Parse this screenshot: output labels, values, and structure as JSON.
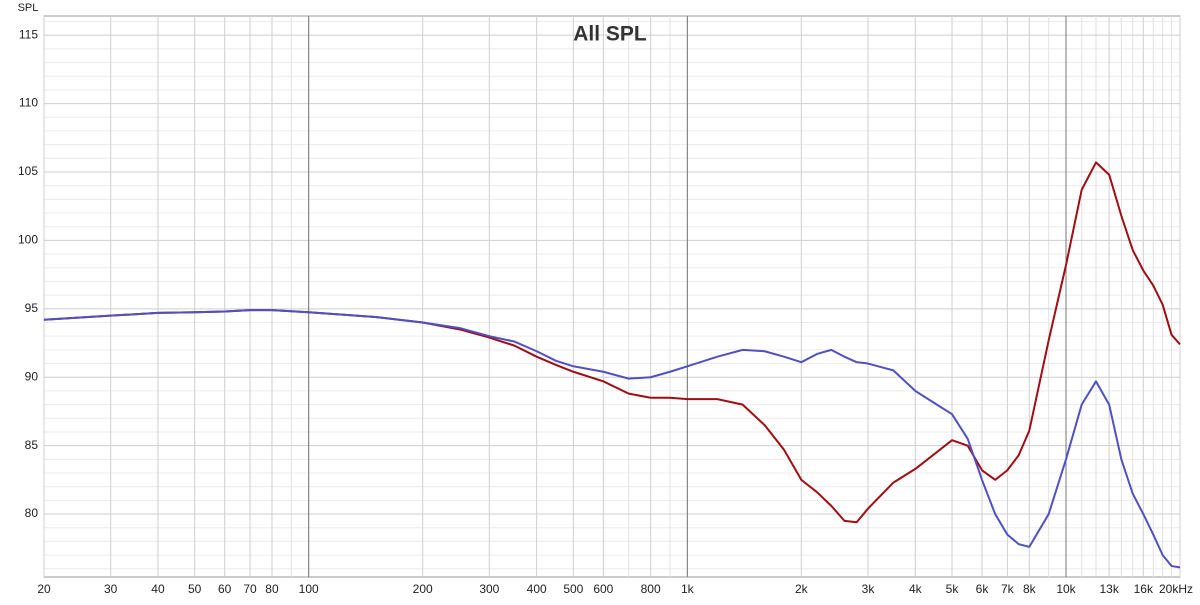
{
  "chart_data": {
    "type": "line",
    "title": "All SPL",
    "y_label": "SPL",
    "x_scale": "log",
    "grid": true,
    "xlim": [
      20,
      20000
    ],
    "ylim": [
      75.4,
      116.4
    ],
    "xticks": [
      20,
      30,
      40,
      50,
      60,
      70,
      80,
      100,
      200,
      300,
      400,
      500,
      600,
      800,
      {
        "value": 1000,
        "label": "1k"
      },
      {
        "value": 2000,
        "label": "2k"
      },
      {
        "value": 3000,
        "label": "3k"
      },
      {
        "value": 4000,
        "label": "4k"
      },
      {
        "value": 5000,
        "label": "5k"
      },
      {
        "value": 6000,
        "label": "6k"
      },
      {
        "value": 7000,
        "label": "7k"
      },
      {
        "value": 8000,
        "label": "8k"
      },
      {
        "value": 10000,
        "label": "10k"
      },
      {
        "value": 13000,
        "label": "13k"
      },
      {
        "value": 16000,
        "label": "16k"
      },
      {
        "value": 20000,
        "label": "20kHz"
      }
    ],
    "x_major_grid": [
      100,
      1000,
      10000
    ],
    "x_minor_grid": [
      90,
      700,
      900,
      9000,
      11000,
      12000,
      14000,
      15000,
      17000,
      18000,
      19000
    ],
    "yticks": [
      80,
      85,
      90,
      95,
      100,
      105,
      110,
      115
    ],
    "y_minor_grid": [
      76,
      77,
      78,
      79,
      81,
      82,
      83,
      84,
      86,
      87,
      88,
      89,
      91,
      92,
      93,
      94,
      96,
      97,
      98,
      99,
      101,
      102,
      103,
      104,
      106,
      107,
      108,
      109,
      111,
      112,
      113,
      114,
      116
    ],
    "x": [
      20,
      30,
      40,
      50,
      60,
      70,
      80,
      100,
      150,
      200,
      250,
      300,
      350,
      400,
      450,
      500,
      600,
      700,
      800,
      900,
      1000,
      1200,
      1400,
      1600,
      1800,
      2000,
      2200,
      2400,
      2600,
      2800,
      3000,
      3500,
      4000,
      4500,
      5000,
      5500,
      6000,
      6500,
      7000,
      7500,
      8000,
      9000,
      10000,
      11000,
      12000,
      13000,
      14000,
      15000,
      16000,
      17000,
      18000,
      19000,
      20000
    ],
    "series": [
      {
        "color": "#a00d12",
        "values": [
          94.2,
          94.5,
          94.7,
          94.75,
          94.8,
          94.9,
          94.9,
          94.75,
          94.4,
          94.0,
          93.5,
          92.9,
          92.3,
          91.5,
          90.9,
          90.4,
          89.7,
          88.8,
          88.5,
          88.5,
          88.4,
          88.4,
          88.0,
          86.5,
          84.7,
          82.5,
          81.6,
          80.6,
          79.5,
          79.4,
          80.4,
          82.3,
          83.3,
          84.4,
          85.4,
          85.0,
          83.2,
          82.5,
          83.2,
          84.3,
          86.1,
          92.7,
          98.2,
          103.7,
          105.7,
          104.8,
          101.8,
          99.3,
          97.8,
          96.7,
          95.3,
          93.1,
          92.4
        ]
      },
      {
        "color": "#5050c4",
        "values": [
          94.2,
          94.5,
          94.7,
          94.75,
          94.8,
          94.9,
          94.9,
          94.75,
          94.4,
          94.0,
          93.6,
          93.0,
          92.6,
          91.9,
          91.2,
          90.8,
          90.4,
          89.9,
          90.0,
          90.4,
          90.8,
          91.5,
          92.0,
          91.9,
          91.5,
          91.1,
          91.7,
          92.0,
          91.5,
          91.1,
          91.0,
          90.5,
          89.0,
          88.1,
          87.3,
          85.5,
          82.5,
          80.0,
          78.5,
          77.8,
          77.6,
          80.0,
          84.0,
          88.0,
          89.7,
          88.0,
          84.0,
          81.5,
          80.0,
          78.5,
          77.0,
          76.2,
          76.1
        ]
      }
    ]
  }
}
